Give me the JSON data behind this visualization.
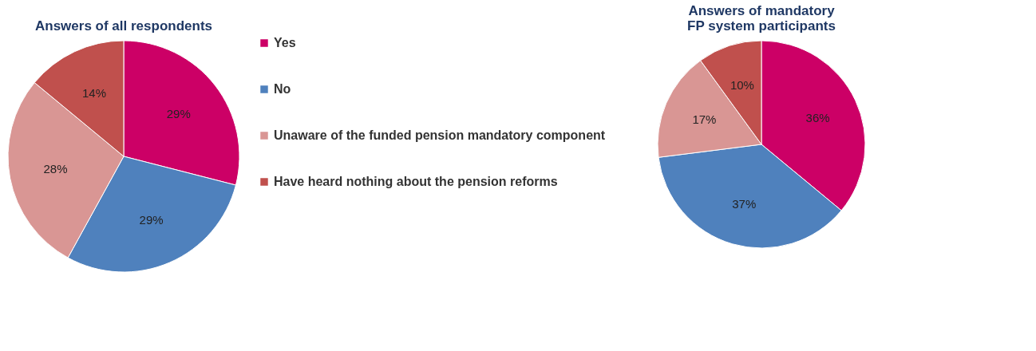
{
  "chart_data": [
    {
      "type": "pie",
      "title": "Answers of all respondents",
      "categories": [
        "Yes",
        "No",
        "Unaware of the funded pension mandatory component",
        "Have heard nothing about the pension reforms"
      ],
      "values": [
        29,
        29,
        28,
        14
      ],
      "value_labels": [
        "29%",
        "29%",
        "28%",
        "14%"
      ],
      "colors": [
        "#cc0066",
        "#4f81bd",
        "#d99694",
        "#c0504d"
      ],
      "legend": "right"
    },
    {
      "type": "pie",
      "title": "Answers of mandatory\nFP system participants",
      "categories": [
        null,
        null,
        null,
        null
      ],
      "values": [
        36,
        37,
        17,
        10
      ],
      "value_labels": [
        "36%",
        "37%",
        "17%",
        "10%"
      ],
      "colors": [
        "#cc0066",
        "#4f81bd",
        "#d99694",
        "#c0504d"
      ]
    }
  ]
}
